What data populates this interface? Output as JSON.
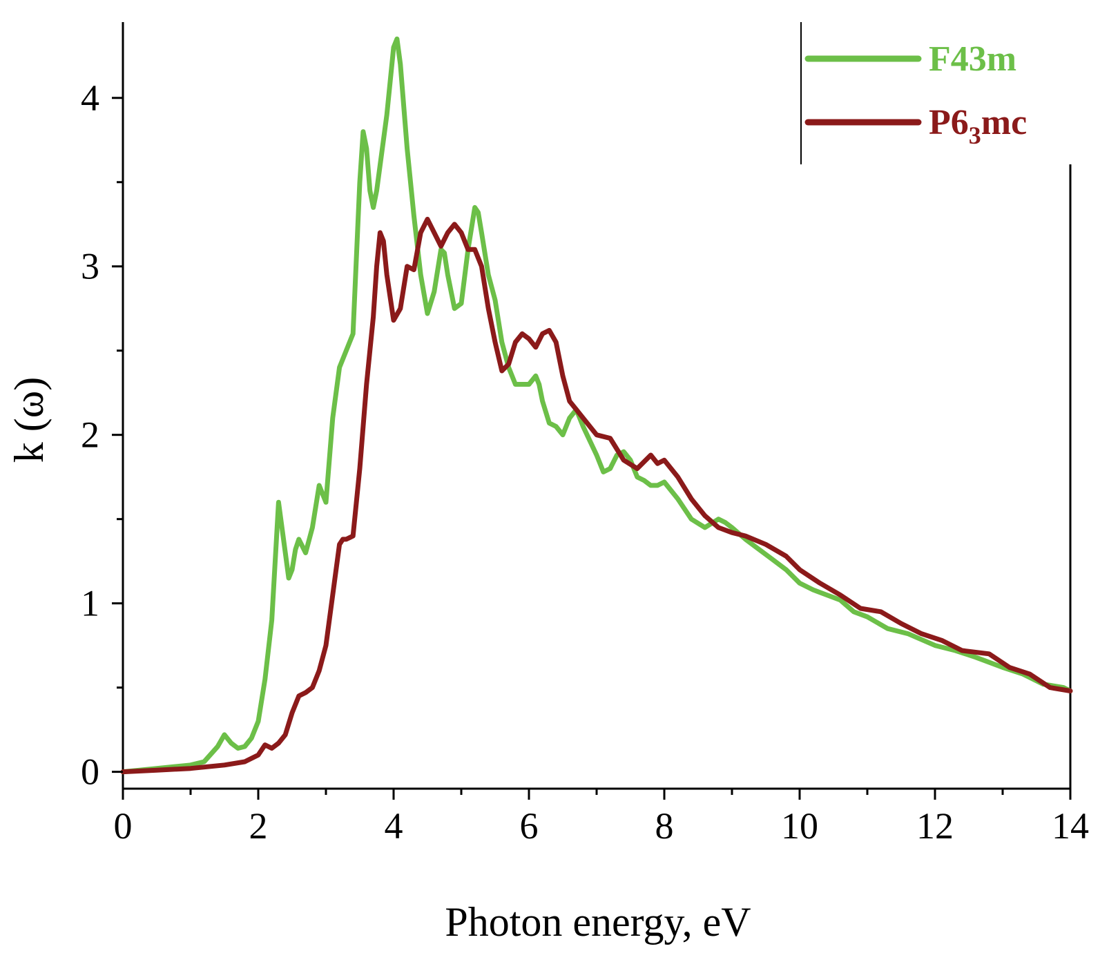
{
  "chart_data": {
    "type": "line",
    "title": "",
    "xlabel": "Photon energy, eV",
    "ylabel": "k (ω)",
    "xlim": [
      0,
      14
    ],
    "ylim": [
      -0.1,
      4.45
    ],
    "xticks": [
      0,
      2,
      4,
      6,
      8,
      10,
      12,
      14
    ],
    "xticklabels": [
      "0",
      "2",
      "4",
      "6",
      "8",
      "10",
      "12",
      "14"
    ],
    "yticks": [
      0,
      1,
      2,
      3,
      4
    ],
    "yticklabels": [
      "0",
      "1",
      "2",
      "3",
      "4"
    ],
    "legend": {
      "position": "top-right"
    },
    "series": [
      {
        "name": "F43m",
        "label": "F43m",
        "color": "#6cbf48",
        "x": [
          0,
          0.5,
          1.0,
          1.2,
          1.4,
          1.5,
          1.6,
          1.7,
          1.8,
          1.9,
          2.0,
          2.1,
          2.2,
          2.3,
          2.4,
          2.45,
          2.5,
          2.55,
          2.6,
          2.7,
          2.8,
          2.9,
          3.0,
          3.1,
          3.2,
          3.3,
          3.4,
          3.5,
          3.55,
          3.6,
          3.65,
          3.7,
          3.75,
          3.8,
          3.9,
          4.0,
          4.05,
          4.1,
          4.2,
          4.3,
          4.4,
          4.5,
          4.6,
          4.7,
          4.75,
          4.8,
          4.9,
          5.0,
          5.1,
          5.2,
          5.25,
          5.3,
          5.4,
          5.5,
          5.6,
          5.7,
          5.8,
          5.9,
          6.0,
          6.1,
          6.15,
          6.2,
          6.3,
          6.4,
          6.5,
          6.6,
          6.7,
          6.8,
          7.0,
          7.1,
          7.2,
          7.3,
          7.4,
          7.5,
          7.6,
          7.7,
          7.8,
          7.9,
          8.0,
          8.2,
          8.4,
          8.6,
          8.8,
          8.9,
          9.0,
          9.2,
          9.4,
          9.6,
          9.8,
          10.0,
          10.2,
          10.4,
          10.6,
          10.8,
          11.0,
          11.3,
          11.6,
          12.0,
          12.3,
          12.6,
          13.0,
          13.3,
          13.6,
          13.9,
          14.0
        ],
        "values": [
          0.0,
          0.02,
          0.04,
          0.06,
          0.15,
          0.22,
          0.17,
          0.14,
          0.15,
          0.2,
          0.3,
          0.55,
          0.9,
          1.6,
          1.3,
          1.15,
          1.2,
          1.32,
          1.38,
          1.3,
          1.45,
          1.7,
          1.6,
          2.1,
          2.4,
          2.5,
          2.6,
          3.5,
          3.8,
          3.7,
          3.45,
          3.35,
          3.45,
          3.6,
          3.9,
          4.3,
          4.35,
          4.2,
          3.7,
          3.3,
          2.95,
          2.72,
          2.85,
          3.1,
          3.08,
          2.95,
          2.75,
          2.78,
          3.1,
          3.35,
          3.32,
          3.2,
          2.95,
          2.8,
          2.55,
          2.4,
          2.3,
          2.3,
          2.3,
          2.35,
          2.3,
          2.2,
          2.07,
          2.05,
          2.0,
          2.1,
          2.15,
          2.05,
          1.88,
          1.78,
          1.8,
          1.88,
          1.9,
          1.85,
          1.75,
          1.73,
          1.7,
          1.7,
          1.72,
          1.62,
          1.5,
          1.45,
          1.5,
          1.48,
          1.45,
          1.38,
          1.32,
          1.26,
          1.2,
          1.12,
          1.08,
          1.05,
          1.02,
          0.95,
          0.92,
          0.85,
          0.82,
          0.75,
          0.72,
          0.68,
          0.62,
          0.58,
          0.52,
          0.5,
          0.48
        ]
      },
      {
        "name": "P6₃mc",
        "label": "P6",
        "label_sub": "3",
        "label_suffix": "mc",
        "color": "#8b1a1a",
        "x": [
          0,
          0.5,
          1.0,
          1.5,
          1.8,
          2.0,
          2.1,
          2.2,
          2.3,
          2.4,
          2.5,
          2.6,
          2.7,
          2.8,
          2.9,
          3.0,
          3.1,
          3.2,
          3.25,
          3.3,
          3.4,
          3.5,
          3.6,
          3.7,
          3.75,
          3.8,
          3.85,
          3.9,
          4.0,
          4.1,
          4.2,
          4.3,
          4.4,
          4.5,
          4.6,
          4.7,
          4.8,
          4.9,
          5.0,
          5.1,
          5.2,
          5.3,
          5.4,
          5.5,
          5.6,
          5.7,
          5.8,
          5.9,
          6.0,
          6.1,
          6.2,
          6.3,
          6.4,
          6.5,
          6.6,
          6.7,
          6.8,
          7.0,
          7.2,
          7.4,
          7.6,
          7.8,
          7.9,
          8.0,
          8.2,
          8.4,
          8.6,
          8.8,
          9.0,
          9.2,
          9.5,
          9.8,
          10.0,
          10.3,
          10.6,
          10.9,
          11.2,
          11.5,
          11.8,
          12.1,
          12.4,
          12.8,
          13.1,
          13.4,
          13.7,
          14.0
        ],
        "values": [
          0.0,
          0.01,
          0.02,
          0.04,
          0.06,
          0.1,
          0.16,
          0.14,
          0.17,
          0.22,
          0.35,
          0.45,
          0.47,
          0.5,
          0.6,
          0.75,
          1.05,
          1.35,
          1.38,
          1.38,
          1.4,
          1.8,
          2.3,
          2.7,
          3.0,
          3.2,
          3.15,
          2.95,
          2.68,
          2.75,
          3.0,
          2.98,
          3.2,
          3.28,
          3.2,
          3.12,
          3.2,
          3.25,
          3.2,
          3.1,
          3.1,
          3.0,
          2.75,
          2.55,
          2.38,
          2.42,
          2.55,
          2.6,
          2.57,
          2.52,
          2.6,
          2.62,
          2.55,
          2.35,
          2.2,
          2.15,
          2.1,
          2.0,
          1.98,
          1.85,
          1.8,
          1.88,
          1.83,
          1.85,
          1.75,
          1.62,
          1.52,
          1.45,
          1.42,
          1.4,
          1.35,
          1.28,
          1.2,
          1.12,
          1.05,
          0.97,
          0.95,
          0.88,
          0.82,
          0.78,
          0.72,
          0.7,
          0.62,
          0.58,
          0.5,
          0.48
        ]
      }
    ]
  }
}
